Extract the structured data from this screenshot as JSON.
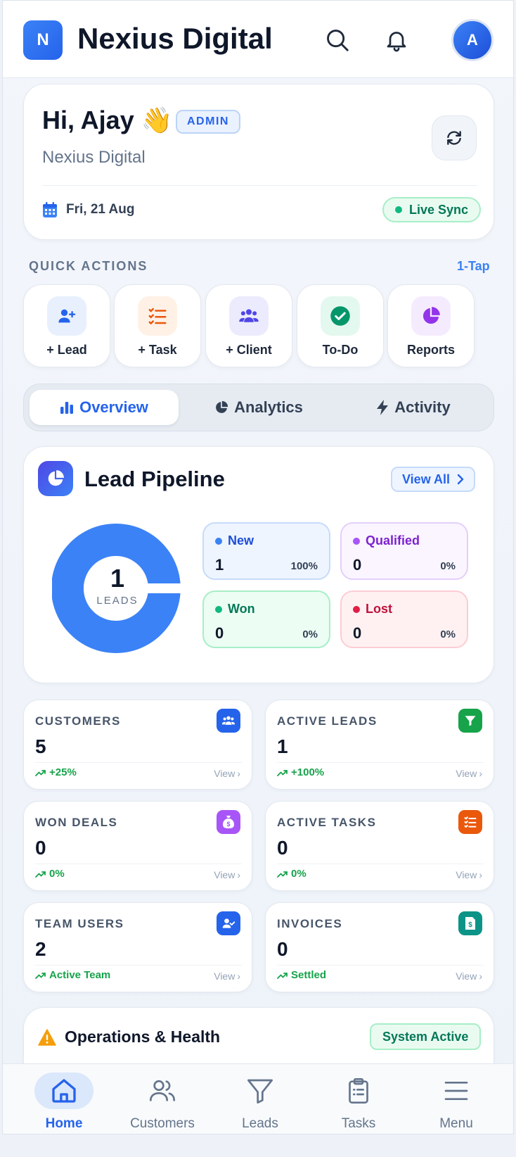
{
  "header": {
    "logo_letter": "N",
    "app_name": "Nexius Digital",
    "avatar_letter": "A"
  },
  "greeting": {
    "title": "Hi, Ajay 👋",
    "role_badge": "ADMIN",
    "org_name": "Nexius Digital",
    "date": "Fri, 21 Aug",
    "sync_status": "Live Sync"
  },
  "quick_actions": {
    "heading": "QUICK ACTIONS",
    "hint": "1-Tap",
    "items": [
      {
        "label": "+ Lead",
        "icon": "add-user-icon"
      },
      {
        "label": "+ Task",
        "icon": "task-list-icon"
      },
      {
        "label": "+ Client",
        "icon": "users-icon"
      },
      {
        "label": "To-Do",
        "icon": "check-circle-icon"
      },
      {
        "label": "Reports",
        "icon": "pie-chart-icon"
      }
    ]
  },
  "tabs": [
    {
      "label": "Overview",
      "active": true
    },
    {
      "label": "Analytics",
      "active": false
    },
    {
      "label": "Activity",
      "active": false
    }
  ],
  "pipeline": {
    "title": "Lead Pipeline",
    "view_all": "View All",
    "total": "1",
    "total_caption": "LEADS",
    "stages": [
      {
        "name": "New",
        "value": "1",
        "percent": "100%",
        "color": "#3b82f6"
      },
      {
        "name": "Qualified",
        "value": "0",
        "percent": "0%",
        "color": "#a855f7"
      },
      {
        "name": "Won",
        "value": "0",
        "percent": "0%",
        "color": "#10b981"
      },
      {
        "name": "Lost",
        "value": "0",
        "percent": "0%",
        "color": "#e11d48"
      }
    ]
  },
  "kpis": [
    {
      "label": "CUSTOMERS",
      "value": "5",
      "trend": "+25%",
      "view": "View",
      "icon": "users-icon",
      "color": "#2563eb"
    },
    {
      "label": "ACTIVE LEADS",
      "value": "1",
      "trend": "+100%",
      "view": "View",
      "icon": "filter-icon",
      "color": "#16a34a"
    },
    {
      "label": "WON DEALS",
      "value": "0",
      "trend": "0%",
      "view": "View",
      "icon": "money-bag-icon",
      "color": "#a855f7"
    },
    {
      "label": "ACTIVE TASKS",
      "value": "0",
      "trend": "0%",
      "view": "View",
      "icon": "task-list-icon",
      "color": "#ea580c"
    },
    {
      "label": "TEAM USERS",
      "value": "2",
      "trend": "Active Team",
      "view": "View",
      "icon": "user-check-icon",
      "color": "#2563eb"
    },
    {
      "label": "INVOICES",
      "value": "0",
      "trend": "Settled",
      "view": "View",
      "icon": "invoice-icon",
      "color": "#0d9488"
    }
  ],
  "operations": {
    "title": "Operations & Health",
    "status": "System Active"
  },
  "bottom_nav": [
    {
      "label": "Home",
      "active": true
    },
    {
      "label": "Customers",
      "active": false
    },
    {
      "label": "Leads",
      "active": false
    },
    {
      "label": "Tasks",
      "active": false
    },
    {
      "label": "Menu",
      "active": false
    }
  ]
}
